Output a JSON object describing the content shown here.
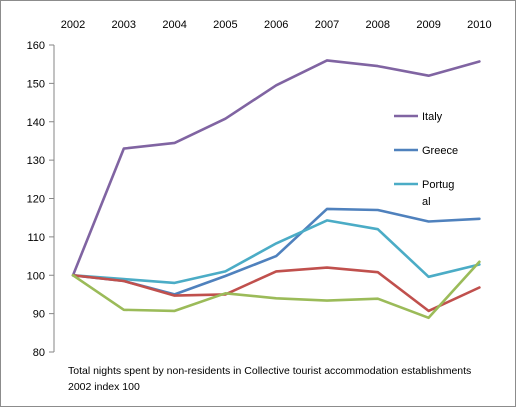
{
  "chart_data": {
    "type": "line",
    "x": [
      "2002",
      "2003",
      "2004",
      "2005",
      "2006",
      "2007",
      "2008",
      "2009",
      "2010"
    ],
    "ylim": [
      80,
      160
    ],
    "yticks": [
      "80",
      "90",
      "100",
      "110",
      "120",
      "130",
      "140",
      "150",
      "160"
    ],
    "x_axis_position": "top",
    "grid": false,
    "legend_position": "right",
    "series": [
      {
        "name": "Italy",
        "color": "#8064a2",
        "values": [
          100,
          133,
          134.5,
          140.8,
          149.5,
          156,
          154.5,
          152,
          155.7
        ]
      },
      {
        "name": "Greece",
        "color": "#4f81bd",
        "values": [
          100,
          98.5,
          95,
          99.8,
          105,
          117.3,
          117,
          114,
          114.7
        ]
      },
      {
        "name": "Portug al",
        "label_lines": [
          "Portug",
          "al"
        ],
        "color": "#4bacc6",
        "values": [
          100,
          99,
          98,
          101,
          108.3,
          114.3,
          112,
          99.6,
          102.8
        ]
      },
      {
        "name": "",
        "color": "#c0504d",
        "values": [
          100,
          98.5,
          94.7,
          95,
          101,
          102,
          100.8,
          90.7,
          96.8
        ]
      },
      {
        "name": "",
        "color": "#9bbb59",
        "values": [
          100,
          91,
          90.7,
          95.3,
          94,
          93.4,
          93.9,
          88.9,
          103.5
        ]
      }
    ]
  },
  "caption": {
    "line1": "Total nights spent by non-residents  in Collective tourist accommodation establishments",
    "line2": "2002 index 100"
  }
}
